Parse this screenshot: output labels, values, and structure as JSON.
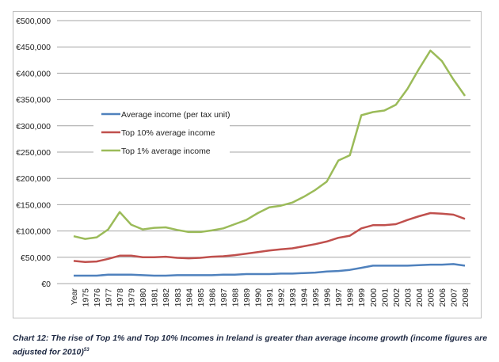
{
  "chart_data": {
    "type": "line",
    "categories": [
      "Year",
      "1975",
      "1976",
      "1977",
      "1978",
      "1979",
      "1980",
      "1981",
      "1982",
      "1983",
      "1984",
      "1985",
      "1986",
      "1987",
      "1988",
      "1989",
      "1990",
      "1991",
      "1992",
      "1993",
      "1994",
      "1995",
      "1996",
      "1997",
      "1998",
      "1999",
      "2000",
      "2001",
      "2002",
      "2003",
      "2004",
      "2005",
      "2006",
      "2007",
      "2008"
    ],
    "ylim": [
      0,
      500000
    ],
    "yticks": [
      0,
      50000,
      100000,
      150000,
      200000,
      250000,
      300000,
      350000,
      400000,
      450000,
      500000
    ],
    "ytick_labels": [
      "€0",
      "€50,000",
      "€100,000",
      "€150,000",
      "€200,000",
      "€250,000",
      "€300,000",
      "€350,000",
      "€400,000",
      "€450,000",
      "€500,000"
    ],
    "grid": true,
    "legend_placement": "upper-left",
    "series": [
      {
        "name": "Average income (per tax unit)",
        "color": "#4f81bd",
        "values": [
          15000,
          15000,
          15000,
          17000,
          17000,
          17000,
          16000,
          15000,
          15000,
          16000,
          16000,
          16000,
          16000,
          17000,
          17000,
          18000,
          18000,
          18000,
          19000,
          19000,
          20000,
          21000,
          23000,
          24000,
          26000,
          30000,
          34000,
          34000,
          34000,
          34000,
          35000,
          36000,
          36000,
          37000,
          34000
        ]
      },
      {
        "name": "Top 10% average income",
        "color": "#c0504d",
        "values": [
          43000,
          41000,
          42000,
          47000,
          53000,
          53000,
          50000,
          50000,
          51000,
          49000,
          48000,
          49000,
          51000,
          52000,
          54000,
          57000,
          60000,
          63000,
          65000,
          67000,
          71000,
          75000,
          80000,
          87000,
          91000,
          105000,
          111000,
          111000,
          113000,
          121000,
          128000,
          134000,
          133000,
          131000,
          123000
        ]
      },
      {
        "name": "Top 1% average income",
        "color": "#9bbb59",
        "values": [
          90000,
          85000,
          88000,
          103000,
          136000,
          112000,
          103000,
          106000,
          107000,
          102000,
          98000,
          98000,
          101000,
          105000,
          113000,
          121000,
          134000,
          145000,
          148000,
          154000,
          165000,
          178000,
          194000,
          234000,
          244000,
          320000,
          326000,
          329000,
          340000,
          370000,
          408000,
          443000,
          423000,
          388000,
          357000
        ]
      }
    ]
  },
  "caption": {
    "text": "Chart 12: The rise of Top 1% and Top 10% Incomes in Ireland is greater than average income growth (income figures are adjusted for 2010)",
    "footnote": "53"
  }
}
